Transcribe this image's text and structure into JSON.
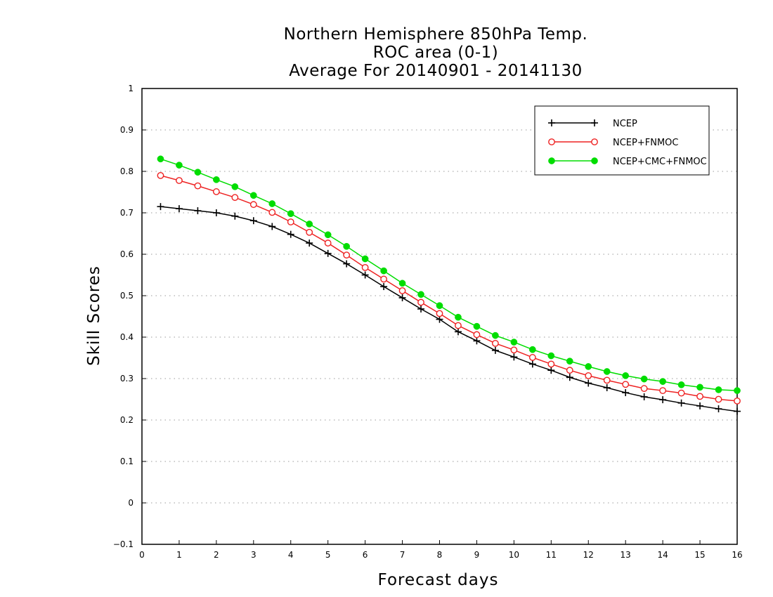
{
  "chart_data": {
    "type": "line",
    "title": [
      "Northern Hemisphere 850hPa Temp.",
      "ROC area (0-1)",
      "Average For 20140901 - 20141130"
    ],
    "xlabel": "Forecast days",
    "ylabel": "Skill Scores",
    "xlim": [
      0,
      16
    ],
    "ylim": [
      -0.1,
      1
    ],
    "xticks": [
      "0",
      "1",
      "2",
      "3",
      "4",
      "5",
      "6",
      "7",
      "8",
      "9",
      "10",
      "11",
      "12",
      "13",
      "14",
      "15",
      "16"
    ],
    "yticks": [
      "-0.1",
      "0",
      "0.1",
      "0.2",
      "0.3",
      "0.4",
      "0.5",
      "0.6",
      "0.7",
      "0.8",
      "0.9",
      "1"
    ],
    "grid": true,
    "legend_position": "top-right",
    "x": [
      0.5,
      1,
      1.5,
      2,
      2.5,
      3,
      3.5,
      4,
      4.5,
      5,
      5.5,
      6,
      6.5,
      7,
      7.5,
      8,
      8.5,
      9,
      9.5,
      10,
      10.5,
      11,
      11.5,
      12,
      12.5,
      13,
      13.5,
      14,
      14.5,
      15,
      15.5,
      16
    ],
    "series": [
      {
        "name": "NCEP",
        "color": "#000000",
        "marker": "plus",
        "values": [
          0.715,
          0.71,
          0.705,
          0.7,
          0.692,
          0.681,
          0.667,
          0.648,
          0.627,
          0.602,
          0.577,
          0.55,
          0.522,
          0.495,
          0.468,
          0.443,
          0.413,
          0.391,
          0.368,
          0.352,
          0.335,
          0.32,
          0.303,
          0.289,
          0.278,
          0.266,
          0.256,
          0.249,
          0.241,
          0.234,
          0.227,
          0.221
        ]
      },
      {
        "name": "NCEP+FNMOC",
        "color": "#ee2222",
        "marker": "open-circle",
        "values": [
          0.79,
          0.778,
          0.765,
          0.751,
          0.737,
          0.72,
          0.701,
          0.678,
          0.653,
          0.627,
          0.598,
          0.568,
          0.54,
          0.512,
          0.484,
          0.457,
          0.428,
          0.406,
          0.385,
          0.369,
          0.351,
          0.335,
          0.32,
          0.307,
          0.296,
          0.286,
          0.276,
          0.271,
          0.265,
          0.257,
          0.25,
          0.246
        ]
      },
      {
        "name": "NCEP+CMC+FNMOC",
        "color": "#00dd00",
        "marker": "filled-circle",
        "values": [
          0.83,
          0.815,
          0.798,
          0.78,
          0.763,
          0.742,
          0.722,
          0.698,
          0.673,
          0.647,
          0.619,
          0.589,
          0.56,
          0.53,
          0.503,
          0.476,
          0.448,
          0.426,
          0.404,
          0.388,
          0.37,
          0.355,
          0.342,
          0.329,
          0.317,
          0.307,
          0.299,
          0.293,
          0.285,
          0.279,
          0.273,
          0.271
        ]
      }
    ]
  }
}
